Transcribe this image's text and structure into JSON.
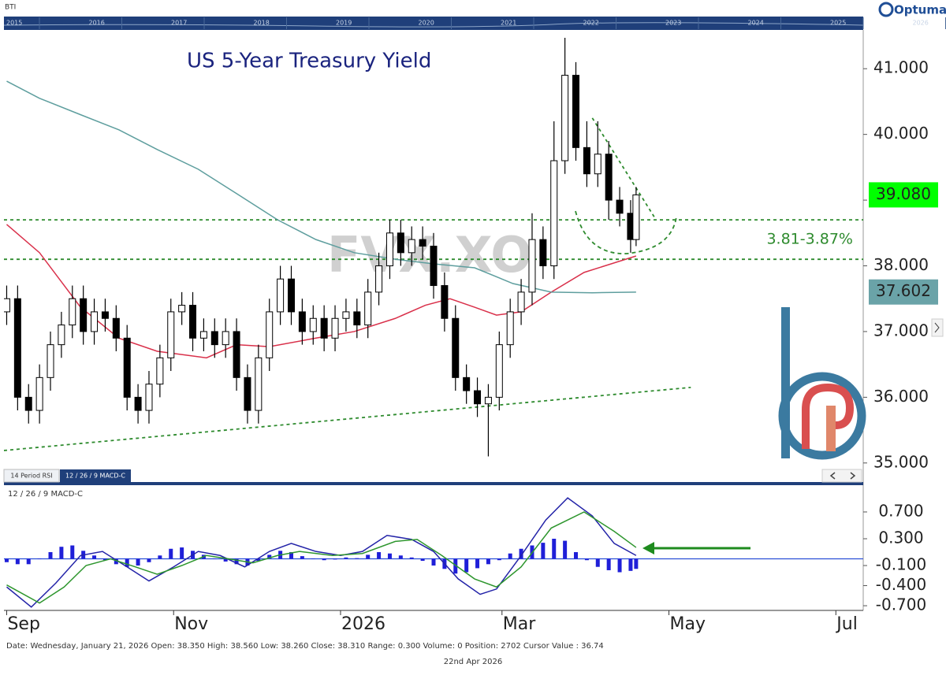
{
  "header": {
    "instrument": "BTI",
    "brand": "Optuma",
    "timeline_years": [
      "2015",
      "2016",
      "2017",
      "2018",
      "2019",
      "2020",
      "2021",
      "2022",
      "2023",
      "2024",
      "2025",
      "2026"
    ]
  },
  "tabs": [
    "14 Period RSI",
    "12 / 26 / 9 MACD-C"
  ],
  "footer": {
    "info": "Date: Wednesday, January 21, 2026 Open: 38.350 High: 38.560 Low: 38.260 Close: 38.310 Range: 0.300 Volume: 0 Position: 2702 Cursor Value : 36.74",
    "date": "22nd Apr 2026"
  },
  "chart_data": [
    {
      "type": "candlestick",
      "title": "US 5-Year Treasury Yield",
      "watermark": "FVX.XO",
      "color": "#000000",
      "xlim": [
        -1,
        313
      ],
      "ylim": [
        34.71,
        41.59
      ],
      "yticks": [
        {
          "value": 35,
          "label": "35.000"
        },
        {
          "value": 36,
          "label": "36.000"
        },
        {
          "value": 37,
          "label": "37.000"
        },
        {
          "value": 38,
          "label": "38.000"
        },
        {
          "value": 39,
          "label": "39.000"
        },
        {
          "value": 40,
          "label": "40.000"
        },
        {
          "value": 41,
          "label": "41.000"
        }
      ],
      "x": [
        0,
        4,
        8,
        12,
        16,
        20,
        24,
        28,
        32,
        36,
        40,
        44,
        48,
        52,
        56,
        60,
        64,
        68,
        72,
        76,
        80,
        84,
        88,
        92,
        96,
        100,
        104,
        108,
        112,
        116,
        120,
        124,
        128,
        132,
        136,
        140,
        144,
        148,
        152,
        156,
        160,
        164,
        168,
        172,
        176,
        180,
        184,
        188,
        192,
        196,
        200,
        204,
        208,
        212,
        216,
        220,
        224,
        228,
        230
      ],
      "open": [
        37.3,
        37.5,
        36.0,
        35.8,
        36.3,
        36.8,
        37.1,
        37.5,
        37.0,
        37.3,
        37.2,
        36.9,
        36.0,
        35.8,
        36.2,
        36.6,
        37.3,
        37.4,
        36.9,
        37.0,
        36.8,
        37.0,
        36.3,
        35.8,
        36.6,
        37.3,
        37.8,
        37.3,
        37.0,
        37.2,
        36.9,
        37.2,
        37.3,
        37.1,
        37.6,
        38.0,
        38.5,
        38.2,
        38.4,
        38.3,
        37.7,
        37.2,
        36.3,
        36.1,
        35.9,
        36.0,
        36.8,
        37.3,
        37.6,
        38.4,
        38.0,
        39.6,
        40.9,
        39.8,
        39.4,
        39.7,
        39.0,
        38.8,
        38.4
      ],
      "high": [
        37.7,
        37.7,
        36.2,
        36.5,
        37.0,
        37.3,
        37.7,
        37.7,
        37.5,
        37.5,
        37.4,
        37.1,
        36.2,
        36.4,
        36.8,
        37.5,
        37.6,
        37.6,
        37.2,
        37.2,
        37.2,
        37.2,
        36.5,
        36.8,
        37.5,
        38.0,
        38.0,
        37.5,
        37.4,
        37.4,
        37.4,
        37.5,
        37.5,
        37.8,
        38.2,
        38.7,
        38.7,
        38.6,
        38.6,
        38.5,
        37.9,
        37.4,
        36.5,
        36.3,
        36.2,
        37.0,
        37.5,
        37.8,
        38.8,
        38.6,
        40.2,
        41.47,
        41.1,
        40.2,
        40.2,
        39.9,
        39.2,
        39.0,
        39.2
      ],
      "low": [
        37.1,
        35.8,
        35.6,
        35.6,
        36.1,
        36.6,
        36.9,
        36.8,
        36.8,
        37.0,
        36.7,
        35.8,
        35.6,
        35.6,
        36.0,
        36.4,
        37.1,
        36.7,
        36.7,
        36.6,
        36.6,
        36.1,
        35.6,
        35.6,
        36.4,
        37.1,
        37.1,
        36.8,
        36.8,
        36.7,
        36.7,
        37.0,
        36.9,
        36.9,
        37.4,
        37.8,
        38.0,
        38.0,
        38.1,
        37.5,
        37.0,
        36.1,
        35.9,
        35.7,
        35.1,
        35.8,
        36.6,
        37.1,
        37.4,
        37.8,
        37.8,
        39.4,
        39.6,
        39.2,
        39.2,
        38.7,
        38.6,
        38.2,
        38.3
      ],
      "close": [
        37.5,
        36.0,
        35.8,
        36.3,
        36.8,
        37.1,
        37.5,
        37.0,
        37.3,
        37.2,
        36.9,
        36.0,
        35.8,
        36.2,
        36.6,
        37.3,
        37.4,
        36.9,
        37.0,
        36.8,
        37.0,
        36.3,
        35.8,
        36.6,
        37.3,
        37.8,
        37.3,
        37.0,
        37.2,
        36.9,
        37.2,
        37.3,
        37.1,
        37.6,
        38.0,
        38.5,
        38.2,
        38.4,
        38.3,
        37.7,
        37.2,
        36.3,
        36.1,
        35.9,
        36.0,
        36.8,
        37.3,
        37.6,
        38.4,
        38.0,
        39.6,
        40.9,
        39.8,
        39.4,
        39.7,
        39.0,
        38.8,
        38.4,
        39.08
      ],
      "lines": [
        {
          "color": "#d9304a",
          "x": [
            0,
            12,
            27,
            41,
            55,
            73,
            84,
            96,
            113,
            127,
            142,
            153,
            162,
            171,
            179,
            188,
            199,
            211,
            230
          ],
          "values": [
            38.63,
            38.2,
            37.37,
            36.9,
            36.7,
            36.6,
            36.8,
            36.77,
            36.9,
            37.0,
            37.2,
            37.4,
            37.5,
            37.37,
            37.25,
            37.3,
            37.6,
            37.9,
            38.15
          ]
        },
        {
          "color": "#5e9e9e",
          "x": [
            0,
            12,
            27,
            41,
            55,
            70,
            84,
            99,
            113,
            127,
            142,
            156,
            171,
            185,
            199,
            214,
            230
          ],
          "values": [
            40.81,
            40.55,
            40.3,
            40.07,
            39.77,
            39.47,
            39.1,
            38.7,
            38.4,
            38.2,
            38.1,
            38.03,
            37.97,
            37.73,
            37.6,
            37.59,
            37.6
          ]
        }
      ],
      "levels": [
        38.7,
        38.1
      ],
      "level_color": "#2e8b2e",
      "level_label": "3.81-3.87%",
      "trendlines": [
        {
          "x": [
            -1,
            250
          ],
          "values": [
            35.19,
            36.15
          ]
        },
        {
          "x": [
            214,
            237
          ],
          "values": [
            40.25,
            38.72
          ]
        }
      ],
      "price_labels": [
        {
          "value": 39.08,
          "label": "39.080",
          "color": "#00ff00"
        },
        {
          "value": 37.602,
          "label": "37.602",
          "color": "#6aa3a8"
        }
      ]
    },
    {
      "type": "macd",
      "title": "12 / 26 / 9 MACD-C",
      "xlim": [
        -1,
        313
      ],
      "ylim": [
        -0.77,
        1.076
      ],
      "xticks": [
        {
          "value": 0,
          "label": "Sep"
        },
        {
          "value": 61,
          "label": "Nov"
        },
        {
          "value": 122,
          "label": "2026"
        },
        {
          "value": 181,
          "label": "Mar"
        },
        {
          "value": 242,
          "label": "May"
        },
        {
          "value": 303,
          "label": "Jul"
        }
      ],
      "yticks": [
        {
          "value": -0.7,
          "label": "-0.700"
        },
        {
          "value": -0.4,
          "label": "-0.400"
        },
        {
          "value": -0.1,
          "label": "-0.100"
        },
        {
          "value": 0.3,
          "label": "0.300"
        },
        {
          "value": 0.7,
          "label": "0.700"
        }
      ],
      "lines": [
        {
          "color": "#2323a8",
          "x": [
            0,
            9,
            18,
            27,
            35,
            44,
            52,
            61,
            70,
            78,
            87,
            96,
            104,
            113,
            122,
            130,
            139,
            148,
            156,
            165,
            173,
            179,
            188,
            197,
            205,
            214,
            222,
            230
          ],
          "values": [
            -0.42,
            -0.72,
            -0.36,
            0.05,
            0.11,
            -0.12,
            -0.33,
            -0.12,
            0.11,
            0.05,
            -0.12,
            0.11,
            0.23,
            0.11,
            0.05,
            0.11,
            0.35,
            0.29,
            0.11,
            -0.3,
            -0.53,
            -0.45,
            0.05,
            0.58,
            0.91,
            0.64,
            0.23,
            0.05
          ]
        },
        {
          "color": "#2e962e",
          "x": [
            0,
            12,
            21,
            29,
            38,
            47,
            55,
            64,
            73,
            81,
            90,
            99,
            107,
            119,
            130,
            142,
            150,
            159,
            171,
            179,
            188,
            199,
            211,
            222,
            230
          ],
          "values": [
            -0.39,
            -0.66,
            -0.42,
            -0.1,
            0,
            -0.12,
            -0.23,
            -0.1,
            0.05,
            0,
            -0.06,
            0.05,
            0.11,
            0.05,
            0.08,
            0.26,
            0.29,
            0.05,
            -0.3,
            -0.42,
            -0.12,
            0.46,
            0.7,
            0.41,
            0.17
          ]
        }
      ],
      "histogram": {
        "color": "#1f1fd8",
        "x": [
          0,
          4,
          8,
          12,
          16,
          20,
          24,
          28,
          32,
          36,
          40,
          44,
          48,
          52,
          56,
          60,
          64,
          68,
          72,
          76,
          80,
          84,
          88,
          92,
          96,
          100,
          104,
          108,
          112,
          116,
          120,
          124,
          128,
          132,
          136,
          140,
          144,
          148,
          152,
          156,
          160,
          164,
          168,
          172,
          176,
          180,
          184,
          188,
          192,
          196,
          200,
          204,
          208,
          212,
          216,
          220,
          224,
          228,
          230
        ],
        "values": [
          -0.05,
          -0.08,
          -0.08,
          0,
          0.1,
          0.18,
          0.2,
          0.12,
          0.05,
          -0.02,
          -0.08,
          -0.12,
          -0.1,
          -0.05,
          0.05,
          0.15,
          0.17,
          0.12,
          0.06,
          0,
          -0.04,
          -0.08,
          -0.1,
          -0.03,
          0.06,
          0.12,
          0.1,
          0.04,
          0,
          -0.02,
          -0.01,
          0.02,
          0.01,
          0.06,
          0.1,
          0.08,
          0.05,
          0.02,
          -0.03,
          -0.1,
          -0.15,
          -0.22,
          -0.2,
          -0.14,
          -0.08,
          -0.02,
          0.08,
          0.15,
          0.2,
          0.24,
          0.3,
          0.27,
          0.1,
          -0.02,
          -0.12,
          -0.17,
          -0.2,
          -0.18,
          -0.15
        ]
      },
      "zero_color": "#2a4fd6"
    }
  ]
}
